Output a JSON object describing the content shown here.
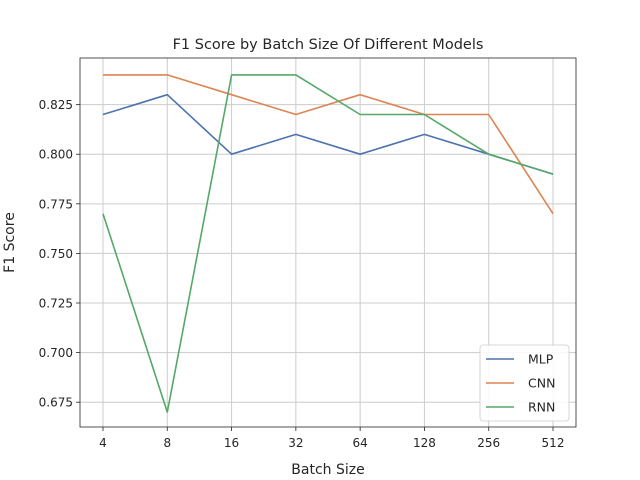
{
  "chart_data": {
    "type": "line",
    "title": "F1 Score by Batch Size Of Different Models",
    "xlabel": "Batch Size",
    "ylabel": "F1 Score",
    "categories": [
      "4",
      "8",
      "16",
      "32",
      "64",
      "128",
      "256",
      "512"
    ],
    "ylim": [
      0.6625,
      0.8485
    ],
    "yticks": [
      0.675,
      0.7,
      0.725,
      0.75,
      0.775,
      0.8,
      0.825
    ],
    "ytick_labels": [
      "0.675",
      "0.700",
      "0.725",
      "0.750",
      "0.775",
      "0.800",
      "0.825"
    ],
    "grid": true,
    "legend_position": "lower-right",
    "series": [
      {
        "name": "MLP",
        "color": "#4c72b0",
        "values": [
          0.82,
          0.83,
          0.8,
          0.81,
          0.8,
          0.81,
          0.8,
          0.79
        ]
      },
      {
        "name": "CNN",
        "color": "#dd8452",
        "values": [
          0.84,
          0.84,
          0.83,
          0.82,
          0.83,
          0.82,
          0.82,
          0.77
        ]
      },
      {
        "name": "RNN",
        "color": "#55a868",
        "values": [
          0.77,
          0.67,
          0.84,
          0.84,
          0.82,
          0.82,
          0.8,
          0.79
        ]
      }
    ]
  }
}
